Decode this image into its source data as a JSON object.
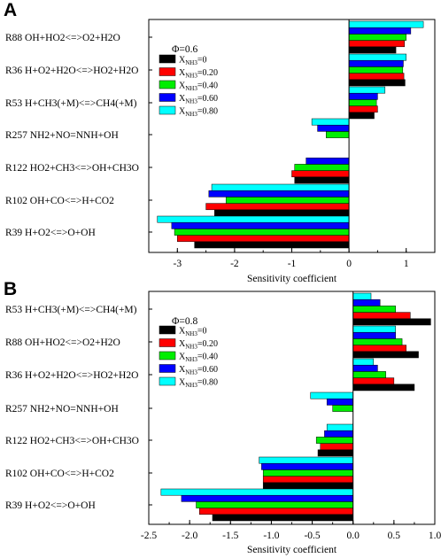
{
  "chart_data": [
    {
      "type": "bar",
      "orientation": "horizontal",
      "panel_label": "A",
      "condition_label": "Φ=0.6",
      "xlabel": "Sensitivity coefficient",
      "xlim": [
        -3.5,
        1.5
      ],
      "xticks": [
        -3,
        -2,
        -1,
        0,
        1
      ],
      "xticklabels": [
        "-3",
        "-2",
        "-1",
        "0",
        "1"
      ],
      "grid": false,
      "legend_position": "upper-left",
      "categories": [
        "R88 OH+HO2<=>O2+H2O",
        "R36 H+O2+H2O<=>HO2+H2O",
        "R53 H+CH3(+M)<=>CH4(+M)",
        "R257 NH2+NO=NNH+OH",
        "R122 HO2+CH3<=>OH+CH3O",
        "R102 OH+CO<=>H+CO2",
        "R39 H+O2<=>O+OH"
      ],
      "series": [
        {
          "label_main": "X",
          "label_sub": "NH3",
          "label_value": "=0",
          "color": "#000000",
          "values": [
            0.82,
            0.98,
            0.44,
            0,
            -0.95,
            -2.35,
            -2.7
          ]
        },
        {
          "label_main": "X",
          "label_sub": "NH3",
          "label_value": "=0.20",
          "color": "#ff0000",
          "values": [
            0.97,
            0.96,
            0.5,
            0,
            -1.0,
            -2.5,
            -3.0
          ]
        },
        {
          "label_main": "X",
          "label_sub": "NH3",
          "label_value": "=0.40",
          "color": "#00ee00",
          "values": [
            1.0,
            0.94,
            0.48,
            -0.4,
            -0.95,
            -2.15,
            -3.05
          ]
        },
        {
          "label_main": "X",
          "label_sub": "NH3",
          "label_value": "=0.60",
          "color": "#0000ff",
          "values": [
            1.08,
            0.95,
            0.5,
            -0.55,
            -0.75,
            -2.45,
            -3.1
          ]
        },
        {
          "label_main": "X",
          "label_sub": "NH3",
          "label_value": "=0.80",
          "color": "#00ffff",
          "values": [
            1.3,
            1.0,
            0.63,
            -0.65,
            0,
            -2.4,
            -3.35
          ]
        }
      ]
    },
    {
      "type": "bar",
      "orientation": "horizontal",
      "panel_label": "B",
      "condition_label": "Φ=0.8",
      "xlabel": "Sensitivity coefficient",
      "xlim": [
        -2.5,
        1.0
      ],
      "xticks": [
        -2.5,
        -2.0,
        -1.5,
        -1.0,
        -0.5,
        0.0,
        0.5,
        1.0
      ],
      "xticklabels": [
        "-2.5",
        "-2.0",
        "-1.5",
        "-1.0",
        "-0.5",
        "0.0",
        "0.5",
        "1.0"
      ],
      "grid": false,
      "legend_position": "upper-left",
      "categories": [
        "R53 H+CH3(+M)<=>CH4(+M)",
        "R88 OH+HO2<=>O2+H2O",
        "R36 H+O2+H2O<=>HO2+H2O",
        "R257 NH2+NO=NNH+OH",
        "R122 HO2+CH3<=>OH+CH3O",
        "R102 OH+CO<=>H+CO2",
        "R39 H+O2<=>O+OH"
      ],
      "series": [
        {
          "label_main": "X",
          "label_sub": "NH3",
          "label_value": "=0",
          "color": "#000000",
          "values": [
            0.95,
            0.8,
            0.75,
            0,
            -0.43,
            -1.1,
            -1.72
          ]
        },
        {
          "label_main": "X",
          "label_sub": "NH3",
          "label_value": "=0.20",
          "color": "#ff0000",
          "values": [
            0.7,
            0.65,
            0.5,
            0,
            -0.4,
            -1.1,
            -1.88
          ]
        },
        {
          "label_main": "X",
          "label_sub": "NH3",
          "label_value": "=0.40",
          "color": "#00ee00",
          "values": [
            0.52,
            0.6,
            0.4,
            -0.25,
            -0.45,
            -1.1,
            -1.92
          ]
        },
        {
          "label_main": "X",
          "label_sub": "NH3",
          "label_value": "=0.60",
          "color": "#0000ff",
          "values": [
            0.33,
            0.52,
            0.3,
            -0.32,
            -0.35,
            -1.12,
            -2.1
          ]
        },
        {
          "label_main": "X",
          "label_sub": "NH3",
          "label_value": "=0.80",
          "color": "#00ffff",
          "values": [
            0.22,
            0.52,
            0.25,
            -0.52,
            -0.32,
            -1.15,
            -2.35
          ]
        }
      ]
    }
  ]
}
